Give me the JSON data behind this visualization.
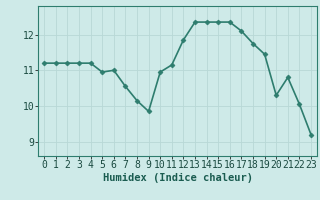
{
  "x": [
    0,
    1,
    2,
    3,
    4,
    5,
    6,
    7,
    8,
    9,
    10,
    11,
    12,
    13,
    14,
    15,
    16,
    17,
    18,
    19,
    20,
    21,
    22,
    23
  ],
  "y": [
    11.2,
    11.2,
    11.2,
    11.2,
    11.2,
    10.95,
    11.0,
    10.55,
    10.15,
    9.85,
    10.95,
    11.15,
    11.85,
    12.35,
    12.35,
    12.35,
    12.35,
    12.1,
    11.75,
    11.45,
    10.3,
    10.8,
    10.05,
    9.2
  ],
  "line_color": "#2e7d6e",
  "marker": "D",
  "marker_size": 2.5,
  "background_color": "#ceeae8",
  "grid_color": "#b8d8d6",
  "xlabel": "Humidex (Indice chaleur)",
  "xlabel_fontsize": 7.5,
  "tick_fontsize": 7,
  "yticks": [
    9,
    10,
    11,
    12
  ],
  "ylim": [
    8.6,
    12.8
  ],
  "xlim": [
    -0.5,
    23.5
  ],
  "linewidth": 1.2,
  "spine_color": "#2e7d6e"
}
